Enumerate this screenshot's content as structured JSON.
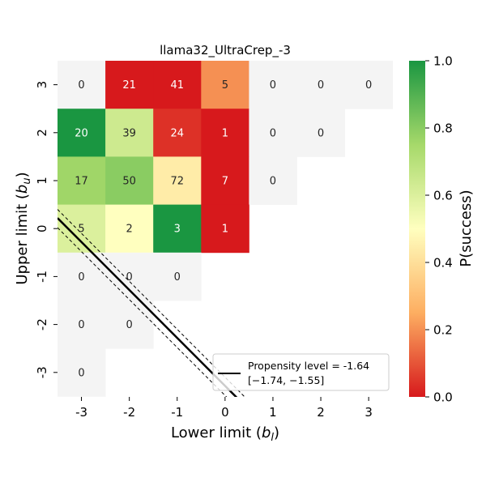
{
  "chart_data": {
    "type": "heatmap",
    "title": "llama32_UltraCrep_-3",
    "xlabel": "Lower limit ($b_l$)",
    "xlabel_main": "Lower limit (",
    "xlabel_sym": "b",
    "xlabel_sub": "l",
    "xlabel_close": ")",
    "ylabel": "Upper limit ($b_u$)",
    "ylabel_main": "Upper limit (",
    "ylabel_sym": "b",
    "ylabel_sub": "u",
    "ylabel_close": ")",
    "x_categories": [
      "-3",
      "-2",
      "-1",
      "0",
      "1",
      "2",
      "3"
    ],
    "y_categories": [
      "3",
      "2",
      "1",
      "0",
      "-1",
      "-2",
      "-3"
    ],
    "cells": [
      {
        "x": "-3",
        "y": "3",
        "count": 0,
        "p": null
      },
      {
        "x": "-2",
        "y": "3",
        "count": 21,
        "p": 0.0
      },
      {
        "x": "-1",
        "y": "3",
        "count": 41,
        "p": 0.0
      },
      {
        "x": "0",
        "y": "3",
        "count": 5,
        "p": 0.2
      },
      {
        "x": "1",
        "y": "3",
        "count": 0,
        "p": null
      },
      {
        "x": "2",
        "y": "3",
        "count": 0,
        "p": null
      },
      {
        "x": "3",
        "y": "3",
        "count": 0,
        "p": null
      },
      {
        "x": "-3",
        "y": "2",
        "count": 20,
        "p": 1.0
      },
      {
        "x": "-2",
        "y": "2",
        "count": 39,
        "p": 0.64
      },
      {
        "x": "-1",
        "y": "2",
        "count": 24,
        "p": 0.04
      },
      {
        "x": "0",
        "y": "2",
        "count": 1,
        "p": 0.0
      },
      {
        "x": "1",
        "y": "2",
        "count": 0,
        "p": null
      },
      {
        "x": "2",
        "y": "2",
        "count": 0,
        "p": null
      },
      {
        "x": "-3",
        "y": "1",
        "count": 17,
        "p": 0.76
      },
      {
        "x": "-2",
        "y": "1",
        "count": 50,
        "p": 0.8
      },
      {
        "x": "-1",
        "y": "1",
        "count": 72,
        "p": 0.44
      },
      {
        "x": "0",
        "y": "1",
        "count": 7,
        "p": 0.0
      },
      {
        "x": "1",
        "y": "1",
        "count": 0,
        "p": null
      },
      {
        "x": "-3",
        "y": "0",
        "count": 5,
        "p": 0.6
      },
      {
        "x": "-2",
        "y": "0",
        "count": 2,
        "p": 0.5
      },
      {
        "x": "-1",
        "y": "0",
        "count": 3,
        "p": 1.0
      },
      {
        "x": "0",
        "y": "0",
        "count": 1,
        "p": 0.0
      },
      {
        "x": "-3",
        "y": "-1",
        "count": 0,
        "p": null
      },
      {
        "x": "-2",
        "y": "-1",
        "count": 0,
        "p": null
      },
      {
        "x": "-1",
        "y": "-1",
        "count": 0,
        "p": null
      },
      {
        "x": "-3",
        "y": "-2",
        "count": 0,
        "p": null
      },
      {
        "x": "-2",
        "y": "-2",
        "count": 0,
        "p": null
      },
      {
        "x": "-3",
        "y": "-3",
        "count": 0,
        "p": null
      }
    ],
    "colorbar": {
      "label": "P(success)",
      "range": [
        0.0,
        1.0
      ],
      "ticks": [
        "0.0",
        "0.2",
        "0.4",
        "0.6",
        "0.8",
        "1.0"
      ],
      "colormap": "RdYlGn",
      "stops": [
        "#d7191c",
        "#fdae61",
        "#ffffbf",
        "#a6d96a",
        "#1a9641"
      ]
    },
    "propensity_line": {
      "level": -1.64,
      "ci": [
        -1.74,
        -1.55
      ],
      "legend_line1": "Propensity level = -1.64",
      "legend_line2": "[−1.74, −1.55]",
      "legend_position": "lower-right"
    },
    "colors": {
      "empty_cell": "#f4f4f4",
      "line": "#000000"
    }
  }
}
